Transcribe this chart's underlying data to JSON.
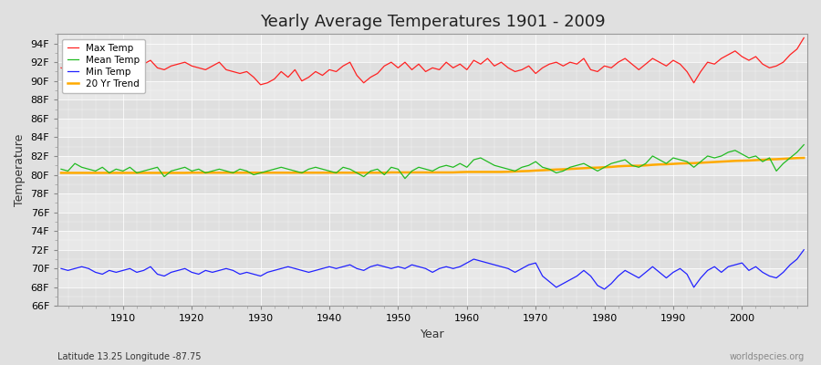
{
  "title": "Yearly Average Temperatures 1901 - 2009",
  "xlabel": "Year",
  "ylabel": "Temperature",
  "lat_lon_label": "Latitude 13.25 Longitude -87.75",
  "watermark": "worldspecies.org",
  "year_start": 1901,
  "year_end": 2009,
  "ylim": [
    66,
    95
  ],
  "yticks": [
    66,
    68,
    70,
    72,
    74,
    76,
    78,
    80,
    82,
    84,
    86,
    88,
    90,
    92,
    94
  ],
  "ytick_labels": [
    "66F",
    "68F",
    "70F",
    "72F",
    "74F",
    "76F",
    "78F",
    "80F",
    "82F",
    "84F",
    "86F",
    "88F",
    "90F",
    "92F",
    "94F"
  ],
  "xticks": [
    1910,
    1920,
    1930,
    1940,
    1950,
    1960,
    1970,
    1980,
    1990,
    2000
  ],
  "bg_color": "#e0e0e0",
  "plot_bg_color": "#e8e8e8",
  "grid_color": "#ffffff",
  "max_temp_color": "#ff2222",
  "mean_temp_color": "#22bb22",
  "min_temp_color": "#2222ff",
  "trend_color": "#ffaa00",
  "legend_labels": [
    "Max Temp",
    "Mean Temp",
    "Min Temp",
    "20 Yr Trend"
  ],
  "max_temps": [
    91.4,
    91.2,
    91.6,
    91.8,
    92.0,
    91.8,
    92.0,
    91.6,
    91.4,
    91.8,
    92.0,
    91.6,
    91.8,
    92.2,
    91.4,
    91.2,
    91.6,
    91.8,
    92.0,
    91.6,
    91.4,
    91.2,
    91.6,
    92.0,
    91.2,
    91.0,
    90.8,
    91.0,
    90.4,
    89.6,
    89.8,
    90.2,
    91.0,
    90.4,
    91.2,
    90.0,
    90.4,
    91.0,
    90.6,
    91.2,
    91.0,
    91.6,
    92.0,
    90.6,
    89.8,
    90.4,
    90.8,
    91.6,
    92.0,
    91.4,
    92.0,
    91.2,
    91.8,
    91.0,
    91.4,
    91.2,
    92.0,
    91.4,
    91.8,
    91.2,
    92.2,
    91.8,
    92.4,
    91.6,
    92.0,
    91.4,
    91.0,
    91.2,
    91.6,
    90.8,
    91.4,
    91.8,
    92.0,
    91.6,
    92.0,
    91.8,
    92.4,
    91.2,
    91.0,
    91.6,
    91.4,
    92.0,
    92.4,
    91.8,
    91.2,
    91.8,
    92.4,
    92.0,
    91.6,
    92.2,
    91.8,
    91.0,
    89.8,
    91.0,
    92.0,
    91.8,
    92.4,
    92.8,
    93.2,
    92.6,
    92.2,
    92.6,
    91.8,
    91.4,
    91.6,
    92.0,
    92.8,
    93.4,
    94.6
  ],
  "mean_temps": [
    80.6,
    80.4,
    81.2,
    80.8,
    80.6,
    80.4,
    80.8,
    80.2,
    80.6,
    80.4,
    80.8,
    80.2,
    80.4,
    80.6,
    80.8,
    79.8,
    80.4,
    80.6,
    80.8,
    80.4,
    80.6,
    80.2,
    80.4,
    80.6,
    80.4,
    80.2,
    80.6,
    80.4,
    80.0,
    80.2,
    80.4,
    80.6,
    80.8,
    80.6,
    80.4,
    80.2,
    80.6,
    80.8,
    80.6,
    80.4,
    80.2,
    80.8,
    80.6,
    80.2,
    79.8,
    80.4,
    80.6,
    80.0,
    80.8,
    80.6,
    79.6,
    80.4,
    80.8,
    80.6,
    80.4,
    80.8,
    81.0,
    80.8,
    81.2,
    80.8,
    81.6,
    81.8,
    81.4,
    81.0,
    80.8,
    80.6,
    80.4,
    80.8,
    81.0,
    81.4,
    80.8,
    80.6,
    80.2,
    80.4,
    80.8,
    81.0,
    81.2,
    80.8,
    80.4,
    80.8,
    81.2,
    81.4,
    81.6,
    81.0,
    80.8,
    81.2,
    82.0,
    81.6,
    81.2,
    81.8,
    81.6,
    81.4,
    80.8,
    81.4,
    82.0,
    81.8,
    82.0,
    82.4,
    82.6,
    82.2,
    81.8,
    82.0,
    81.4,
    81.8,
    80.4,
    81.2,
    81.8,
    82.4,
    83.2
  ],
  "min_temps": [
    70.0,
    69.8,
    70.0,
    70.2,
    70.0,
    69.6,
    69.4,
    69.8,
    69.6,
    69.8,
    70.0,
    69.6,
    69.8,
    70.2,
    69.4,
    69.2,
    69.6,
    69.8,
    70.0,
    69.6,
    69.4,
    69.8,
    69.6,
    69.8,
    70.0,
    69.8,
    69.4,
    69.6,
    69.4,
    69.2,
    69.6,
    69.8,
    70.0,
    70.2,
    70.0,
    69.8,
    69.6,
    69.8,
    70.0,
    70.2,
    70.0,
    70.2,
    70.4,
    70.0,
    69.8,
    70.2,
    70.4,
    70.2,
    70.0,
    70.2,
    70.0,
    70.4,
    70.2,
    70.0,
    69.6,
    70.0,
    70.2,
    70.0,
    70.2,
    70.6,
    71.0,
    70.8,
    70.6,
    70.4,
    70.2,
    70.0,
    69.6,
    70.0,
    70.4,
    70.6,
    69.2,
    68.6,
    68.0,
    68.4,
    68.8,
    69.2,
    69.8,
    69.2,
    68.2,
    67.8,
    68.4,
    69.2,
    69.8,
    69.4,
    69.0,
    69.6,
    70.2,
    69.6,
    69.0,
    69.6,
    70.0,
    69.4,
    68.0,
    69.0,
    69.8,
    70.2,
    69.6,
    70.2,
    70.4,
    70.6,
    69.8,
    70.2,
    69.6,
    69.2,
    69.0,
    69.6,
    70.4,
    71.0,
    72.0
  ],
  "trend_temps": [
    80.2,
    80.2,
    80.2,
    80.2,
    80.2,
    80.2,
    80.2,
    80.2,
    80.2,
    80.2,
    80.2,
    80.2,
    80.2,
    80.2,
    80.2,
    80.2,
    80.2,
    80.2,
    80.2,
    80.22,
    80.22,
    80.22,
    80.22,
    80.22,
    80.22,
    80.22,
    80.22,
    80.22,
    80.22,
    80.22,
    80.22,
    80.22,
    80.22,
    80.22,
    80.22,
    80.22,
    80.22,
    80.22,
    80.22,
    80.22,
    80.22,
    80.22,
    80.22,
    80.22,
    80.22,
    80.22,
    80.22,
    80.22,
    80.25,
    80.25,
    80.25,
    80.25,
    80.25,
    80.25,
    80.25,
    80.25,
    80.25,
    80.25,
    80.28,
    80.3,
    80.3,
    80.3,
    80.3,
    80.3,
    80.3,
    80.32,
    80.35,
    80.38,
    80.4,
    80.45,
    80.48,
    80.52,
    80.56,
    80.58,
    80.62,
    80.66,
    80.7,
    80.74,
    80.76,
    80.8,
    80.84,
    80.9,
    80.94,
    80.96,
    80.96,
    81.0,
    81.06,
    81.1,
    81.12,
    81.16,
    81.2,
    81.22,
    81.24,
    81.28,
    81.32,
    81.36,
    81.4,
    81.44,
    81.48,
    81.5,
    81.52,
    81.56,
    81.6,
    81.64,
    81.66,
    81.7,
    81.74,
    81.78,
    81.8
  ]
}
